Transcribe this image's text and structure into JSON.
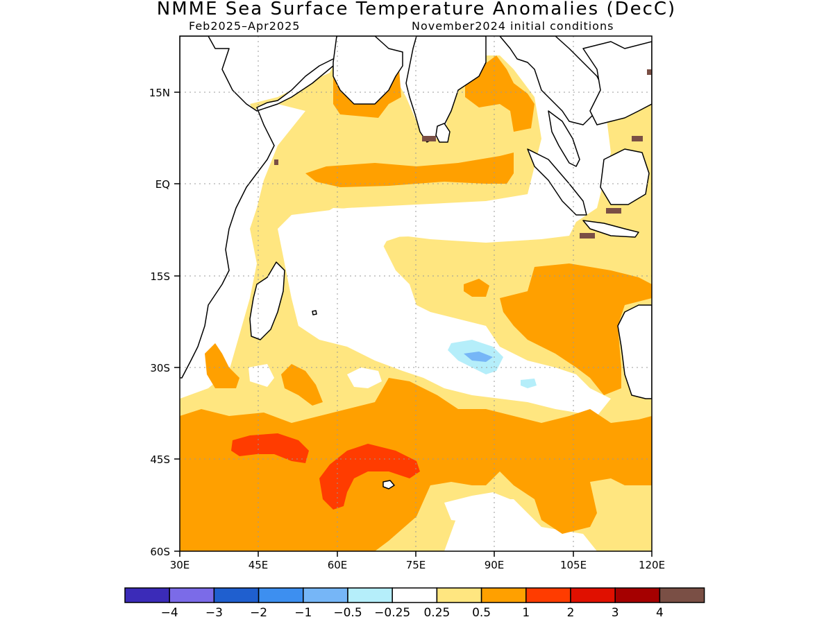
{
  "title": "NMME Sea Surface Temperature Anomalies (DecC)",
  "subtitle_left": "Feb2025–Apr2025",
  "subtitle_right": "November2024 initial conditions",
  "map": {
    "lon_range": [
      30,
      120
    ],
    "lat_range": [
      -60,
      24
    ],
    "lon_ticks": [
      "30E",
      "45E",
      "60E",
      "75E",
      "90E",
      "105E",
      "120E"
    ],
    "lat_ticks": [
      "15N",
      "EQ",
      "15S",
      "30S",
      "45S",
      "60S"
    ]
  },
  "colorbar": {
    "colors": [
      "#3b2bb8",
      "#7b6be8",
      "#1f5fcf",
      "#3d8ff0",
      "#76b6f7",
      "#b5eefa",
      "#ffffff",
      "#ffe680",
      "#ffa000",
      "#ff3c00",
      "#e01000",
      "#a50000",
      "#7a4f45"
    ],
    "labels": [
      "−4",
      "−3",
      "−2",
      "−1",
      "−0.5",
      "−0.25",
      "0.25",
      "0.5",
      "1",
      "2",
      "3",
      "4"
    ]
  }
}
